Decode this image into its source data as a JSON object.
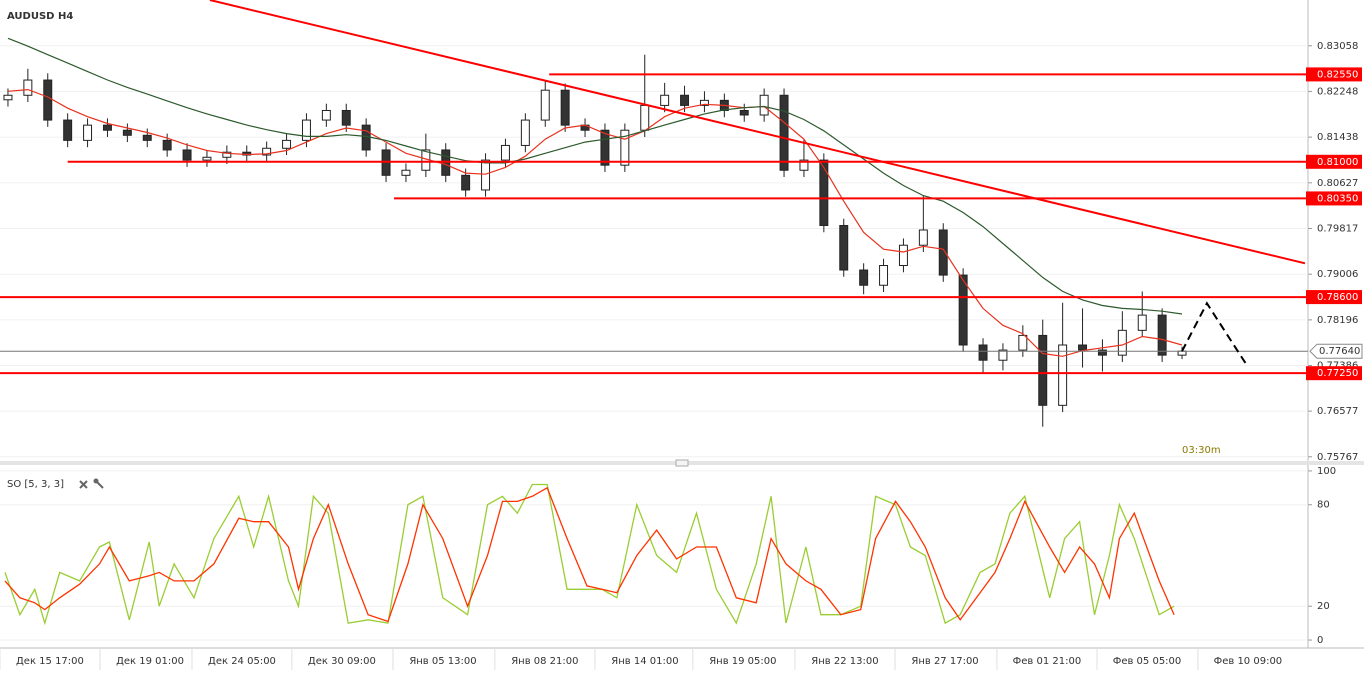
{
  "chart_data": [
    {
      "type": "candlestick",
      "title": "AUDUSD H4",
      "xlim": [
        -0.4,
        65.33
      ],
      "ylim": [
        0.7571,
        0.8387
      ],
      "yticks": [
        {
          "value": 0.83058,
          "label": "0.83058"
        },
        {
          "value": 0.82248,
          "label": "0.82248"
        },
        {
          "value": 0.81438,
          "label": "0.81438"
        },
        {
          "value": 0.80627,
          "label": "0.80627"
        },
        {
          "value": 0.79817,
          "label": "0.79817"
        },
        {
          "value": 0.79006,
          "label": "0.79006"
        },
        {
          "value": 0.78196,
          "label": "0.78196"
        },
        {
          "value": 0.77386,
          "label": "0.77386"
        },
        {
          "value": 0.76577,
          "label": "0.76577"
        },
        {
          "value": 0.75767,
          "label": "0.75767"
        }
      ],
      "grid": true,
      "open": [
        0.821,
        0.8218,
        0.8245,
        0.8174,
        0.8138,
        0.8165,
        0.8156,
        0.8147,
        0.8138,
        0.8121,
        0.8103,
        0.8108,
        0.8117,
        0.8112,
        0.8124,
        0.8138,
        0.8174,
        0.8191,
        0.8165,
        0.8121,
        0.8076,
        0.8085,
        0.8121,
        0.8076,
        0.805,
        0.8103,
        0.8129,
        0.8174,
        0.8227,
        0.8165,
        0.8156,
        0.8094,
        0.8156,
        0.82,
        0.8218,
        0.82,
        0.8209,
        0.8191,
        0.8183,
        0.8218,
        0.8085,
        0.8103,
        0.7987,
        0.7908,
        0.7881,
        0.7916,
        0.7952,
        0.7979,
        0.7899,
        0.7775,
        0.7748,
        0.7766,
        0.7792,
        0.7668,
        0.7775,
        0.7766,
        0.7757,
        0.7801,
        0.7828,
        0.7757
      ],
      "high": [
        0.823,
        0.8265,
        0.8257,
        0.8186,
        0.8177,
        0.8177,
        0.8168,
        0.8159,
        0.815,
        0.8133,
        0.812,
        0.8129,
        0.8129,
        0.8136,
        0.815,
        0.8186,
        0.8203,
        0.8203,
        0.8177,
        0.8133,
        0.8097,
        0.815,
        0.8133,
        0.8088,
        0.8115,
        0.8141,
        0.8186,
        0.8245,
        0.8239,
        0.8177,
        0.8168,
        0.8168,
        0.829,
        0.824,
        0.8235,
        0.8225,
        0.8221,
        0.8203,
        0.823,
        0.823,
        0.814,
        0.8115,
        0.7999,
        0.792,
        0.7928,
        0.7964,
        0.804,
        0.7991,
        0.7911,
        0.7787,
        0.7778,
        0.781,
        0.782,
        0.785,
        0.784,
        0.7785,
        0.7835,
        0.787,
        0.784,
        0.7772
      ],
      "low": [
        0.8198,
        0.8206,
        0.8162,
        0.8126,
        0.8126,
        0.8144,
        0.8135,
        0.8126,
        0.8109,
        0.8091,
        0.8091,
        0.8096,
        0.81,
        0.81,
        0.8112,
        0.8126,
        0.8162,
        0.8153,
        0.8109,
        0.8064,
        0.8064,
        0.8073,
        0.8064,
        0.8038,
        0.8038,
        0.8091,
        0.8117,
        0.8162,
        0.8153,
        0.8144,
        0.8082,
        0.8082,
        0.8144,
        0.8188,
        0.8188,
        0.8188,
        0.8179,
        0.8171,
        0.8171,
        0.8073,
        0.8073,
        0.7975,
        0.7896,
        0.7865,
        0.7869,
        0.7904,
        0.794,
        0.7887,
        0.7763,
        0.7725,
        0.773,
        0.7754,
        0.763,
        0.7656,
        0.7735,
        0.7728,
        0.7745,
        0.7789,
        0.7745,
        0.775
      ],
      "close": [
        0.8218,
        0.8245,
        0.8174,
        0.8138,
        0.8165,
        0.8156,
        0.8147,
        0.8138,
        0.8121,
        0.8103,
        0.8108,
        0.8117,
        0.8112,
        0.8124,
        0.8138,
        0.8174,
        0.8191,
        0.8165,
        0.8121,
        0.8076,
        0.8085,
        0.8121,
        0.8076,
        0.805,
        0.8103,
        0.8129,
        0.8174,
        0.8227,
        0.8165,
        0.8156,
        0.8094,
        0.8156,
        0.82,
        0.8218,
        0.82,
        0.8209,
        0.8191,
        0.8183,
        0.8218,
        0.8085,
        0.8103,
        0.7987,
        0.7908,
        0.7881,
        0.7916,
        0.7952,
        0.7979,
        0.7899,
        0.7775,
        0.7748,
        0.7766,
        0.7792,
        0.7668,
        0.7775,
        0.7766,
        0.7757,
        0.7801,
        0.7828,
        0.7757,
        0.7764
      ],
      "series": [
        {
          "color": "#e8321e",
          "values": [
            0.8225,
            0.8228,
            0.8215,
            0.8195,
            0.818,
            0.8168,
            0.816,
            0.8152,
            0.8142,
            0.813,
            0.812,
            0.8115,
            0.8113,
            0.8114,
            0.812,
            0.8135,
            0.815,
            0.816,
            0.8155,
            0.8135,
            0.8115,
            0.8105,
            0.8095,
            0.808,
            0.8078,
            0.809,
            0.811,
            0.814,
            0.816,
            0.8165,
            0.815,
            0.814,
            0.8155,
            0.818,
            0.8195,
            0.8202,
            0.82,
            0.8196,
            0.8198,
            0.817,
            0.814,
            0.809,
            0.803,
            0.7975,
            0.7945,
            0.794,
            0.795,
            0.7945,
            0.789,
            0.784,
            0.781,
            0.7795,
            0.776,
            0.7755,
            0.7765,
            0.777,
            0.7775,
            0.779,
            0.7785,
            0.7775
          ]
        },
        {
          "color": "#2d5a2d",
          "values": [
            0.8319,
            0.8305,
            0.829,
            0.8275,
            0.826,
            0.8245,
            0.8232,
            0.822,
            0.8208,
            0.8196,
            0.8185,
            0.8175,
            0.8165,
            0.8157,
            0.815,
            0.8145,
            0.8145,
            0.8148,
            0.8145,
            0.8138,
            0.8128,
            0.8118,
            0.811,
            0.8102,
            0.8098,
            0.8098,
            0.8105,
            0.8115,
            0.8125,
            0.8135,
            0.814,
            0.8145,
            0.8155,
            0.8165,
            0.8175,
            0.8185,
            0.8192,
            0.8196,
            0.8198,
            0.819,
            0.8175,
            0.8155,
            0.813,
            0.8105,
            0.808,
            0.8058,
            0.804,
            0.803,
            0.801,
            0.7985,
            0.7955,
            0.7925,
            0.7895,
            0.787,
            0.7855,
            0.7845,
            0.784,
            0.7838,
            0.7835,
            0.783
          ]
        }
      ],
      "levels": [
        {
          "value": 0.8255,
          "label": "0.82550",
          "start": 27.2
        },
        {
          "value": 0.81,
          "label": "0.81000",
          "start": 3
        },
        {
          "value": 0.8035,
          "label": "0.80350",
          "start": 19.4
        },
        {
          "value": 0.786,
          "label": "0.78600"
        },
        {
          "value": 0.7725,
          "label": "0.77250"
        }
      ],
      "level_color": "#ff0000",
      "current": {
        "value": 0.7764,
        "label": "0.77640"
      },
      "trend_line": {
        "x": [
          10.15,
          65.18
        ],
        "y": [
          0.8387,
          0.792
        ]
      },
      "forecast": {
        "x": [
          59,
          60.25,
          62.26
        ],
        "y": [
          0.7764,
          0.7849,
          0.7739
        ]
      },
      "annotation": "03:30m"
    },
    {
      "type": "line",
      "title": "SO [5, 3, 3]",
      "xlim": [
        -0.4,
        65.33
      ],
      "ylim": [
        -4.7,
        103.5
      ],
      "yticks": [
        0,
        20,
        80,
        100
      ],
      "grid": true,
      "xticks": [
        {
          "value": 2.11,
          "label": "Дек 15 17:00"
        },
        {
          "value": 7.14,
          "label": "Дек 19 01:00"
        },
        {
          "value": 11.76,
          "label": "Дек 24 05:00"
        },
        {
          "value": 16.78,
          "label": "Дек 30 09:00"
        },
        {
          "value": 21.86,
          "label": "Янв 05 13:00"
        },
        {
          "value": 26.98,
          "label": "Янв 08 21:00"
        },
        {
          "value": 32.01,
          "label": "Янв 14 01:00"
        },
        {
          "value": 36.93,
          "label": "Янв 19 05:00"
        },
        {
          "value": 42.06,
          "label": "Янв 22 13:00"
        },
        {
          "value": 47.09,
          "label": "Янв 27 17:00"
        },
        {
          "value": 52.21,
          "label": "Фев 01 21:00"
        },
        {
          "value": 57.24,
          "label": "Фев 05 05:00"
        },
        {
          "value": 62.31,
          "label": "Фев 10 09:00"
        }
      ],
      "x": [
        -0.15,
        0.6,
        1.35,
        1.85,
        2.6,
        3.6,
        4.6,
        5.1,
        6.1,
        7.1,
        7.6,
        8.35,
        9.35,
        10.35,
        11.6,
        12.35,
        13.1,
        14.1,
        14.6,
        15.35,
        16.1,
        17.1,
        18.1,
        19.1,
        20.1,
        20.85,
        21.85,
        23.1,
        24.1,
        24.85,
        25.6,
        26.35,
        27.1,
        28.1,
        29.1,
        29.85,
        30.6,
        31.6,
        32.6,
        33.6,
        34.6,
        35.6,
        36.6,
        37.6,
        38.35,
        39.1,
        40.1,
        40.85,
        41.85,
        42.85,
        43.6,
        44.6,
        45.35,
        46.1,
        47.1,
        47.85,
        48.85,
        49.6,
        50.35,
        51.1,
        52.35,
        53.1,
        53.85,
        54.6,
        55.35,
        55.85,
        56.6,
        57.85,
        58.6
      ],
      "series": [
        {
          "color": "#9acd32",
          "values": [
            40,
            15,
            30,
            10,
            40,
            35,
            55,
            58,
            12,
            58,
            20,
            45,
            25,
            60,
            85,
            55,
            85,
            35,
            20,
            85,
            75,
            10,
            12,
            10,
            80,
            85,
            25,
            15,
            80,
            85,
            75,
            92,
            92,
            30,
            30,
            30,
            25,
            80,
            50,
            40,
            75,
            30,
            10,
            45,
            85,
            10,
            55,
            15,
            15,
            20,
            85,
            80,
            55,
            50,
            10,
            15,
            40,
            45,
            75,
            85,
            25,
            60,
            70,
            15,
            50,
            80,
            60,
            15,
            20
          ]
        },
        {
          "color": "#ff3300",
          "values": [
            35,
            25,
            22,
            18,
            25,
            33,
            45,
            55,
            35,
            38,
            40,
            35,
            35,
            45,
            72,
            70,
            70,
            55,
            30,
            60,
            80,
            45,
            15,
            11,
            45,
            80,
            60,
            20,
            50,
            82,
            82,
            85,
            90,
            60,
            32,
            30,
            28,
            50,
            65,
            48,
            55,
            55,
            25,
            22,
            60,
            45,
            35,
            30,
            15,
            18,
            60,
            82,
            70,
            55,
            25,
            12,
            28,
            40,
            60,
            82,
            55,
            40,
            55,
            45,
            25,
            60,
            75,
            35,
            15
          ]
        }
      ]
    }
  ]
}
